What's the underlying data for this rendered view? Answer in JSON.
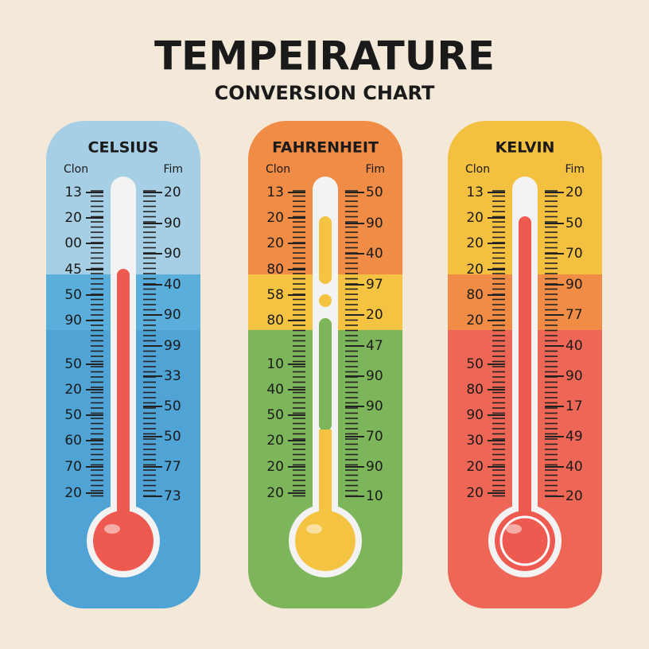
{
  "header": {
    "title": "TEMPEIRATURE",
    "subtitle": "CONVERSION CHART"
  },
  "panels": [
    {
      "name": "CELSIUS",
      "left_header": "Clon",
      "right_header": "Fim",
      "left_labels": [
        "13",
        "20",
        "00",
        "45",
        "50",
        "90",
        "50",
        "20",
        "50",
        "60",
        "70",
        "20"
      ],
      "right_labels": [
        "20",
        "90",
        "90",
        "40",
        "90",
        "99",
        "33",
        "50",
        "50",
        "77",
        "73"
      ]
    },
    {
      "name": "FAHRENHEIT",
      "left_header": "Clon",
      "right_header": "Fim",
      "left_labels": [
        "13",
        "20",
        "20",
        "80",
        "58",
        "80",
        "10",
        "40",
        "50",
        "20",
        "20",
        "20"
      ],
      "right_labels": [
        "50",
        "90",
        "40",
        "97",
        "20",
        "47",
        "90",
        "90",
        "70",
        "90",
        "10"
      ]
    },
    {
      "name": "KELVIN",
      "left_header": "Clon",
      "right_header": "Fim",
      "left_labels": [
        "13",
        "20",
        "20",
        "20",
        "80",
        "20",
        "50",
        "80",
        "90",
        "30",
        "20",
        "20"
      ],
      "right_labels": [
        "20",
        "50",
        "70",
        "90",
        "77",
        "40",
        "90",
        "17",
        "49",
        "40",
        "20"
      ]
    }
  ]
}
